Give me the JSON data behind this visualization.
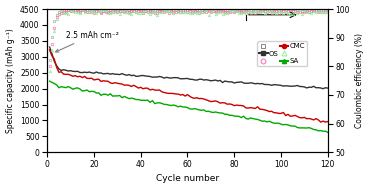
{
  "title": "",
  "xlabel": "Cycle number",
  "ylabel_left": "Specific capacity (mAh g⁻¹)",
  "ylabel_right": "Coulombic efficiency (%)",
  "xlim": [
    0,
    120
  ],
  "ylim_left": [
    0,
    4500
  ],
  "ylim_right": [
    50,
    100
  ],
  "yticks_left": [
    0,
    500,
    1000,
    1500,
    2000,
    2500,
    3000,
    3500,
    4000,
    4500
  ],
  "yticks_right": [
    50,
    60,
    70,
    80,
    90,
    100
  ],
  "xticks": [
    0,
    20,
    40,
    60,
    80,
    100,
    120
  ],
  "annotation_text": "2.5 mAh cm⁻²",
  "colors": {
    "OS_cap": "#333333",
    "CMC_cap": "#cc0000",
    "SA_cap": "#00aa00",
    "OS_CE": "#aaaaaa",
    "CMC_CE": "#ff69b4",
    "SA_CE": "#90ee90"
  },
  "background": "#ffffff"
}
